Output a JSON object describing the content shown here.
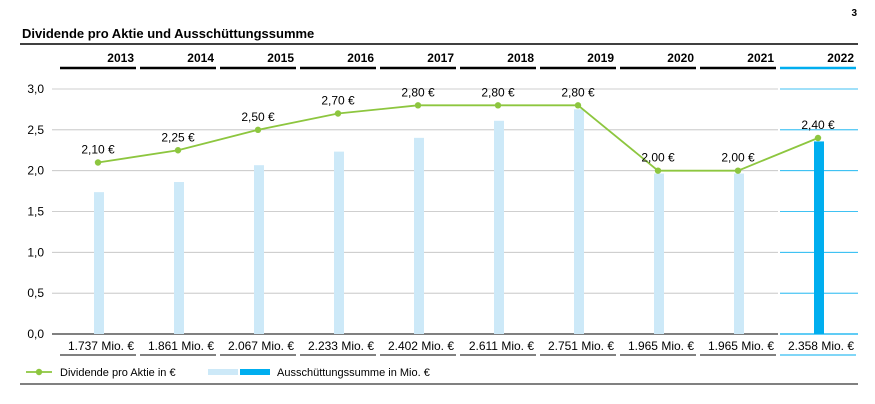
{
  "page_number": "3",
  "chart_data": {
    "type": "bar",
    "title": "Dividende pro Aktie und Ausschüttungssumme",
    "categories": [
      "2013",
      "2014",
      "2015",
      "2016",
      "2017",
      "2018",
      "2019",
      "2020",
      "2021",
      "2022"
    ],
    "highlight_category": "2022",
    "ylim": [
      0,
      3.0
    ],
    "yticks": [
      0,
      0.5,
      1.0,
      1.5,
      2.0,
      2.5,
      3.0
    ],
    "ytick_labels": [
      "0,0",
      "0,5",
      "1,0",
      "1,5",
      "2,0",
      "2,5",
      "3,0"
    ],
    "grid": true,
    "series": [
      {
        "name": "Ausschüttungssumme in Mio. €",
        "kind": "bar",
        "values": [
          1737,
          1861,
          2067,
          2233,
          2402,
          2611,
          2751,
          1965,
          1965,
          2358
        ],
        "labels": [
          "1.737 Mio. €",
          "1.861 Mio. €",
          "2.067 Mio. €",
          "2.233 Mio. €",
          "2.402 Mio. €",
          "2.611 Mio. €",
          "2.751 Mio. €",
          "1.965 Mio. €",
          "1.965 Mio. €",
          "2.358 Mio. €"
        ],
        "color": "#cde9f8",
        "highlight_color": "#00aeef"
      },
      {
        "name": "Dividende pro Aktie in €",
        "kind": "line",
        "values": [
          2.1,
          2.25,
          2.5,
          2.7,
          2.8,
          2.8,
          2.8,
          2.0,
          2.0,
          2.4
        ],
        "labels": [
          "2,10 €",
          "2,25 €",
          "2,50 €",
          "2,70 €",
          "2,80 €",
          "2,80 €",
          "2,80 €",
          "2,00 €",
          "2,00 €",
          "2,40 €"
        ],
        "color": "#8dc63f"
      }
    ],
    "legend_position": "bottom-left",
    "colors": {
      "text": "#000000",
      "highlight": "#00aeef",
      "grid": "#bfbfbf",
      "axis": "#000000"
    }
  }
}
